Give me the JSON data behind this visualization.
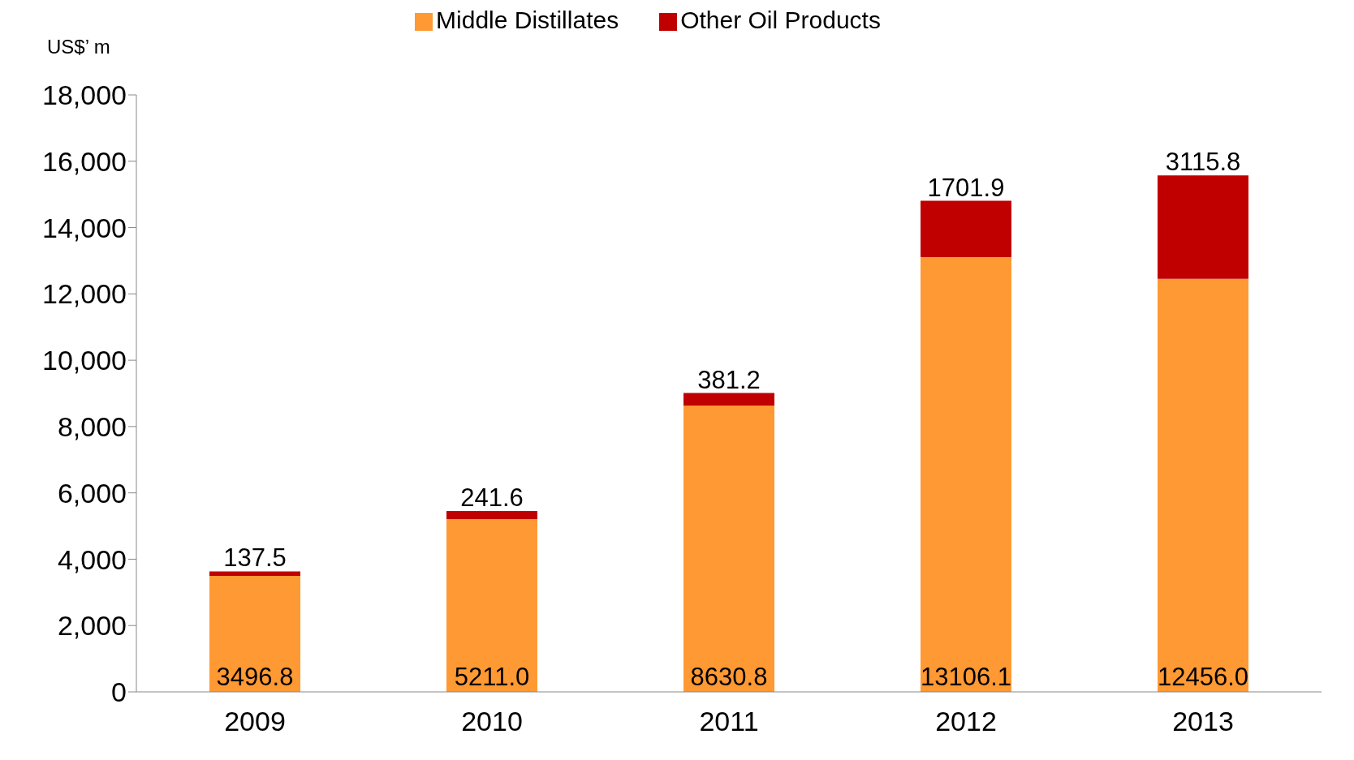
{
  "chart_data": {
    "type": "bar",
    "ylabel": "US$’ m",
    "categories": [
      "2009",
      "2010",
      "2011",
      "2012",
      "2013"
    ],
    "series": [
      {
        "name": "Middle Distillates",
        "color": "#ff9933",
        "values": [
          3496.8,
          5211,
          8630.8,
          13106.1,
          12456
        ],
        "value_labels": [
          "3496.8",
          "5211.0",
          "8630.8",
          "13106.1",
          "12456.0"
        ]
      },
      {
        "name": "Other Oil Products",
        "color": "#c00000",
        "values": [
          137.5,
          241.6,
          381.2,
          1701.9,
          3115.8
        ],
        "value_labels": [
          "137.5",
          "241.6",
          "381.2",
          "1701.9",
          "3115.8"
        ]
      }
    ],
    "stacked": true,
    "legend": "top",
    "ylim": [
      0,
      18000
    ],
    "yticks": [
      0,
      {
        "value": 2000,
        "label": "2,000"
      },
      {
        "value": 4000,
        "label": "4,000"
      },
      {
        "value": 6000,
        "label": "6,000"
      },
      {
        "value": 8000,
        "label": "8,000"
      },
      {
        "value": 10000,
        "label": "10,000"
      },
      {
        "value": 12000,
        "label": "12,000"
      },
      {
        "value": 14000,
        "label": "14,000"
      },
      {
        "value": 16000,
        "label": "16,000"
      },
      {
        "value": 18000,
        "label": "18,000"
      }
    ]
  }
}
